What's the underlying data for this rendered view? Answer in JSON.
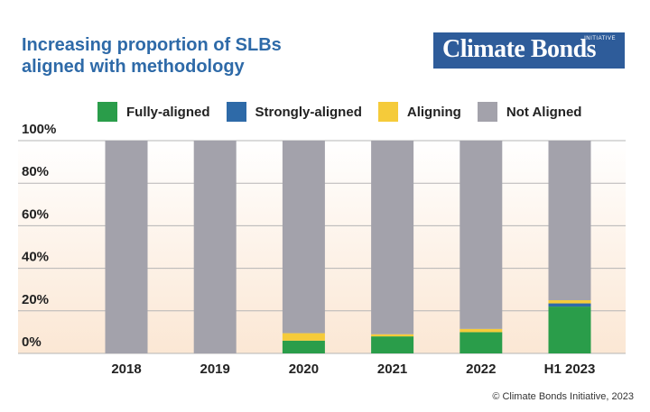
{
  "title_lines": [
    "Increasing proportion of SLBs",
    "aligned with methodology"
  ],
  "logo": {
    "main": "Climate Bonds",
    "sub": "INITIATIVE"
  },
  "copyright": "© Climate Bonds Initiative, 2023",
  "chart_data": {
    "type": "bar",
    "stacked": true,
    "title": "Increasing proportion of SLBs aligned with methodology",
    "categories": [
      "2018",
      "2019",
      "2020",
      "2021",
      "2022",
      "H1 2023"
    ],
    "y_ticks": [
      "0%",
      "20%",
      "40%",
      "60%",
      "80%",
      "100%"
    ],
    "ylim": [
      0,
      100
    ],
    "grid": true,
    "legend_position": "top",
    "series": [
      {
        "name": "Fully-aligned",
        "color": "#2a9d4a",
        "values": [
          0,
          0,
          6,
          8,
          10,
          22
        ]
      },
      {
        "name": "Strongly-aligned",
        "color": "#2e6aa8",
        "values": [
          0,
          0,
          0,
          0,
          0,
          1.5
        ]
      },
      {
        "name": "Aligning",
        "color": "#f5cb3a",
        "values": [
          0,
          0,
          3.5,
          1,
          1.5,
          1.5
        ]
      },
      {
        "name": "Not Aligned",
        "color": "#a3a2ab",
        "values": [
          100,
          100,
          90.5,
          91,
          88.5,
          75
        ]
      }
    ]
  }
}
